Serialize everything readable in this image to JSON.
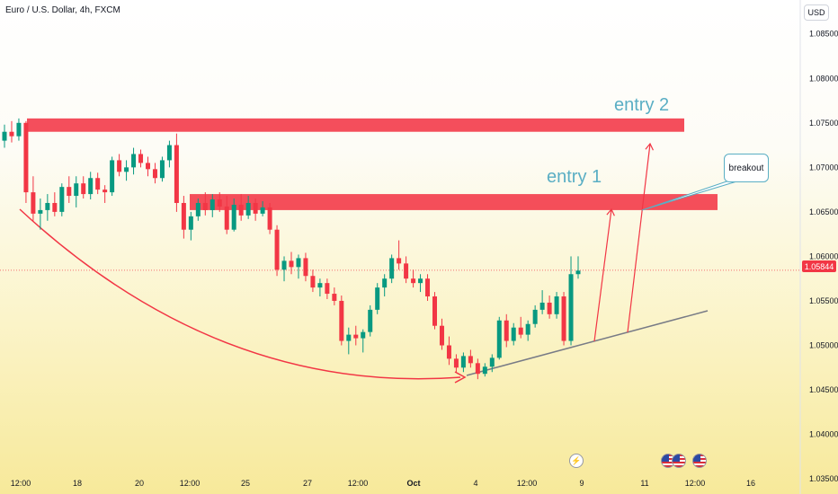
{
  "symbol_title": "Euro / U.S. Dollar, 4h, FXCM",
  "currency_button": "USD",
  "current_price_label": "1.05844",
  "annotations": {
    "entry1": "entry 1",
    "entry2": "entry 2",
    "breakout": "breakout"
  },
  "colors": {
    "bull": "#089981",
    "bear": "#f23645",
    "zone": "#f23645",
    "arrow": "#f23645",
    "trendline": "#787b86",
    "annotation_text": "#5aaec4"
  },
  "event_icons": [
    "lightning-icon",
    "us-flag-icon",
    "us-flag-icon",
    "us-flag-icon"
  ],
  "chart_data": {
    "type": "candlestick",
    "y_ticks": [
      "1.08500",
      "1.08000",
      "1.07500",
      "1.07000",
      "1.06500",
      "1.06000",
      "1.05500",
      "1.05000",
      "1.04500",
      "1.04000",
      "1.03500"
    ],
    "x_ticks": [
      "12:00",
      "18",
      "20",
      "12:00",
      "25",
      "27",
      "12:00",
      "Oct",
      "4",
      "12:00",
      "9",
      "11",
      "12:00",
      "16"
    ],
    "ylim": [
      1.0335,
      1.088
    ],
    "last_price": 1.05844,
    "zones": [
      {
        "label": "entry 2",
        "low": 1.074,
        "high": 1.0755
      },
      {
        "label": "entry 1",
        "low": 1.0652,
        "high": 1.067
      }
    ],
    "candles": [
      [
        1.073,
        1.0748,
        1.0722,
        1.074
      ],
      [
        1.074,
        1.0752,
        1.0728,
        1.0735
      ],
      [
        1.0735,
        1.0755,
        1.073,
        1.075
      ],
      [
        1.075,
        1.0752,
        1.066,
        1.0672
      ],
      [
        1.0672,
        1.069,
        1.064,
        1.0648
      ],
      [
        1.0648,
        1.0665,
        1.063,
        1.0652
      ],
      [
        1.0652,
        1.067,
        1.064,
        1.066
      ],
      [
        1.066,
        1.0672,
        1.0645,
        1.065
      ],
      [
        1.065,
        1.0682,
        1.0645,
        1.0678
      ],
      [
        1.0678,
        1.069,
        1.066,
        1.0668
      ],
      [
        1.0668,
        1.069,
        1.0655,
        1.0682
      ],
      [
        1.0682,
        1.069,
        1.0665,
        1.067
      ],
      [
        1.067,
        1.0695,
        1.0664,
        1.0688
      ],
      [
        1.0688,
        1.0694,
        1.067,
        1.0675
      ],
      [
        1.0675,
        1.068,
        1.066,
        1.0672
      ],
      [
        1.0672,
        1.0712,
        1.0668,
        1.0708
      ],
      [
        1.0708,
        1.0715,
        1.069,
        1.0695
      ],
      [
        1.0695,
        1.0708,
        1.0685,
        1.07
      ],
      [
        1.07,
        1.0722,
        1.0692,
        1.0715
      ],
      [
        1.0715,
        1.072,
        1.07,
        1.0705
      ],
      [
        1.0705,
        1.0712,
        1.069,
        1.0698
      ],
      [
        1.0698,
        1.0705,
        1.0682,
        1.0688
      ],
      [
        1.0688,
        1.0712,
        1.0684,
        1.0708
      ],
      [
        1.0708,
        1.073,
        1.07,
        1.0725
      ],
      [
        1.0725,
        1.0738,
        1.065,
        1.066
      ],
      [
        1.066,
        1.0668,
        1.062,
        1.063
      ],
      [
        1.063,
        1.065,
        1.0618,
        1.0645
      ],
      [
        1.0645,
        1.0665,
        1.064,
        1.066
      ],
      [
        1.066,
        1.0672,
        1.0646,
        1.0652
      ],
      [
        1.0652,
        1.067,
        1.0644,
        1.0664
      ],
      [
        1.0664,
        1.0672,
        1.065,
        1.0656
      ],
      [
        1.0656,
        1.0668,
        1.0625,
        1.063
      ],
      [
        1.063,
        1.0665,
        1.0628,
        1.0658
      ],
      [
        1.0658,
        1.067,
        1.064,
        1.0646
      ],
      [
        1.0646,
        1.0668,
        1.0642,
        1.066
      ],
      [
        1.066,
        1.0665,
        1.064,
        1.0648
      ],
      [
        1.0648,
        1.0662,
        1.0645,
        1.0655
      ],
      [
        1.0655,
        1.066,
        1.0625,
        1.063
      ],
      [
        1.063,
        1.0635,
        1.0578,
        1.0585
      ],
      [
        1.0585,
        1.06,
        1.0572,
        1.0595
      ],
      [
        1.0595,
        1.0605,
        1.058,
        1.0588
      ],
      [
        1.0588,
        1.0602,
        1.0575,
        1.0598
      ],
      [
        1.0598,
        1.0604,
        1.0572,
        1.0578
      ],
      [
        1.0578,
        1.0585,
        1.056,
        1.0565
      ],
      [
        1.0565,
        1.0575,
        1.0555,
        1.057
      ],
      [
        1.057,
        1.0575,
        1.0552,
        1.0558
      ],
      [
        1.0558,
        1.0565,
        1.0545,
        1.055
      ],
      [
        1.055,
        1.0556,
        1.05,
        1.0505
      ],
      [
        1.0505,
        1.052,
        1.049,
        1.0512
      ],
      [
        1.0512,
        1.0522,
        1.05,
        1.0508
      ],
      [
        1.0508,
        1.0518,
        1.0492,
        1.0515
      ],
      [
        1.0515,
        1.0545,
        1.051,
        1.054
      ],
      [
        1.054,
        1.057,
        1.0535,
        1.0565
      ],
      [
        1.0565,
        1.058,
        1.0555,
        1.0575
      ],
      [
        1.0575,
        1.0602,
        1.057,
        1.0598
      ],
      [
        1.0598,
        1.0618,
        1.0585,
        1.0592
      ],
      [
        1.0592,
        1.06,
        1.057,
        1.0575
      ],
      [
        1.0575,
        1.0585,
        1.0565,
        1.057
      ],
      [
        1.057,
        1.058,
        1.056,
        1.0575
      ],
      [
        1.0575,
        1.058,
        1.055,
        1.0555
      ],
      [
        1.0555,
        1.056,
        1.0518,
        1.0522
      ],
      [
        1.0522,
        1.053,
        1.0495,
        1.05
      ],
      [
        1.05,
        1.051,
        1.0478,
        1.0485
      ],
      [
        1.0485,
        1.049,
        1.047,
        1.0475
      ],
      [
        1.0475,
        1.0492,
        1.047,
        1.0488
      ],
      [
        1.0488,
        1.0495,
        1.0475,
        1.048
      ],
      [
        1.048,
        1.0485,
        1.0462,
        1.0468
      ],
      [
        1.0468,
        1.048,
        1.0465,
        1.0476
      ],
      [
        1.0476,
        1.049,
        1.047,
        1.0486
      ],
      [
        1.0486,
        1.0532,
        1.0484,
        1.0528
      ],
      [
        1.0528,
        1.0535,
        1.0498,
        1.0505
      ],
      [
        1.0505,
        1.0525,
        1.05,
        1.052
      ],
      [
        1.052,
        1.0532,
        1.0508,
        1.0512
      ],
      [
        1.0512,
        1.0528,
        1.0505,
        1.0524
      ],
      [
        1.0524,
        1.0545,
        1.052,
        1.054
      ],
      [
        1.054,
        1.0562,
        1.0535,
        1.0548
      ],
      [
        1.0548,
        1.0556,
        1.053,
        1.0535
      ],
      [
        1.0535,
        1.056,
        1.053,
        1.0555
      ],
      [
        1.0555,
        1.056,
        1.05,
        1.0505
      ],
      [
        1.0505,
        1.06,
        1.05,
        1.058
      ],
      [
        1.058,
        1.06,
        1.0575,
        1.0584
      ]
    ]
  }
}
